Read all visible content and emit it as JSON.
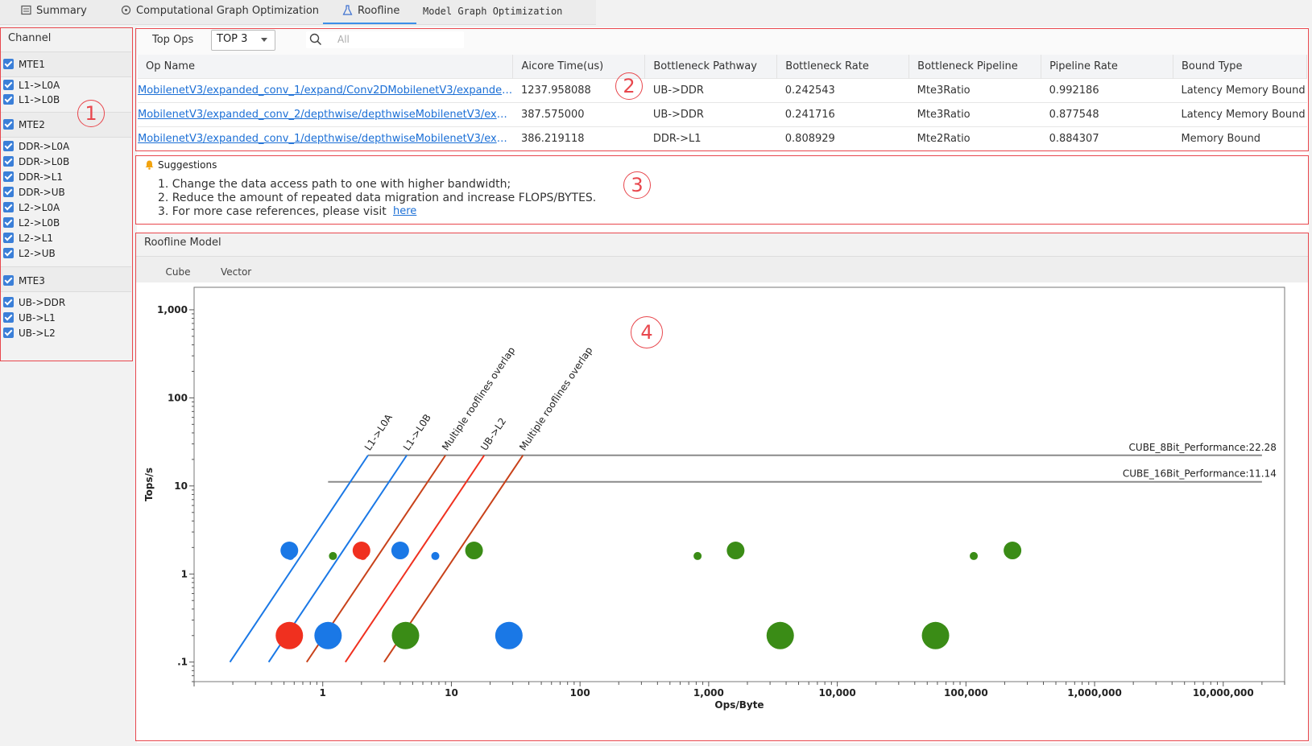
{
  "tabs": [
    {
      "label": "Summary",
      "icon": "summary-icon"
    },
    {
      "label": "Computational Graph Optimization",
      "icon": "graph-icon"
    },
    {
      "label": "Roofline",
      "icon": "flask-icon",
      "active": true
    },
    {
      "label": "Model Graph Optimization"
    }
  ],
  "channel": {
    "title": "Channel",
    "groups": [
      {
        "name": "MTE1",
        "items": [
          "L1->L0A",
          "L1->L0B"
        ]
      },
      {
        "name": "MTE2",
        "items": [
          "DDR->L0A",
          "DDR->L0B",
          "DDR->L1",
          "DDR->UB",
          "L2->L0A",
          "L2->L0B",
          "L2->L1",
          "L2->UB"
        ]
      },
      {
        "name": "MTE3",
        "items": [
          "UB->DDR",
          "UB->L1",
          "UB->L2"
        ]
      }
    ]
  },
  "filter": {
    "top_ops_label": "Top Ops",
    "top_ops_value": "TOP 3",
    "search_placeholder": "All"
  },
  "table": {
    "columns": [
      "Op Name",
      "Aicore Time(us)",
      "Bottleneck Pathway",
      "Bottleneck Rate",
      "Bottleneck Pipeline",
      "Pipeline Rate",
      "Bound Type"
    ],
    "rows": [
      [
        "MobilenetV3/expanded_conv_1/expand/Conv2DMobilenetV3/expanded_c...",
        "1237.958088",
        "UB->DDR",
        "0.242543",
        "Mte3Ratio",
        "0.992186",
        "Latency Memory Bound"
      ],
      [
        "MobilenetV3/expanded_conv_2/depthwise/depthwiseMobilenetV3/expan...",
        "387.575000",
        "UB->DDR",
        "0.241716",
        "Mte3Ratio",
        "0.877548",
        "Latency Memory Bound"
      ],
      [
        "MobilenetV3/expanded_conv_1/depthwise/depthwiseMobilenetV3/expan...",
        "386.219118",
        "DDR->L1",
        "0.808929",
        "Mte2Ratio",
        "0.884307",
        "Memory Bound"
      ]
    ]
  },
  "suggestions": {
    "title": "Suggestions",
    "lines": [
      "1. Change the data access path to one with higher bandwidth;",
      "2. Reduce the amount of repeated data migration and increase FLOPS/BYTES.",
      "3. For more case references, please visit"
    ],
    "link": "here"
  },
  "roofline": {
    "title": "Roofline Model",
    "subtabs": [
      "Cube",
      "Vector"
    ],
    "active_subtab": "Cube"
  },
  "annotations": [
    "1",
    "2",
    "3",
    "4"
  ],
  "colors": {
    "blue": "#1a78e6",
    "red": "#f0301f",
    "green": "#3a8c16",
    "orange": "#c8421a",
    "gray": "#8a8a8a",
    "annot": "#e8474d"
  },
  "chart_data": {
    "type": "scatter",
    "xlabel": "Ops/Byte",
    "ylabel": "Tops/s",
    "x_scale": "log",
    "y_scale": "log",
    "xlim": [
      0.1,
      30000000
    ],
    "ylim": [
      0.06,
      1800
    ],
    "x_ticks": [
      {
        "v": 1,
        "label": "1"
      },
      {
        "v": 10,
        "label": "10"
      },
      {
        "v": 100,
        "label": "100"
      },
      {
        "v": 1000,
        "label": "1,000"
      },
      {
        "v": 10000,
        "label": "10,000"
      },
      {
        "v": 100000,
        "label": "100,000"
      },
      {
        "v": 1000000,
        "label": "1,000,000"
      },
      {
        "v": 10000000,
        "label": "10,000,000"
      }
    ],
    "y_ticks": [
      {
        "v": 0.1,
        "label": ".1"
      },
      {
        "v": 1,
        "label": "1"
      },
      {
        "v": 10,
        "label": "10"
      },
      {
        "v": 100,
        "label": "100"
      },
      {
        "v": 1000,
        "label": "1,000"
      }
    ],
    "rooflines": [
      {
        "label": "L1->L0A",
        "color": "blue",
        "x0": 0.19,
        "ridge": 2.25,
        "peak": 22.28
      },
      {
        "label": "L1->L0B",
        "color": "blue",
        "x0": 0.38,
        "ridge": 4.5,
        "peak": 22.28
      },
      {
        "label": "Multiple rooflines overlap",
        "color": "orange",
        "x0": 0.75,
        "ridge": 9,
        "peak": 22.28
      },
      {
        "label": "UB->L2",
        "color": "red",
        "x0": 1.5,
        "ridge": 18,
        "peak": 22.28
      },
      {
        "label": "Multiple rooflines overlap",
        "color": "orange",
        "x0": 3.0,
        "ridge": 36,
        "peak": 22.28
      }
    ],
    "ceilings": [
      {
        "label": "CUBE_8Bit_Performance:22.28",
        "value": 22.28,
        "x_start": 2.25,
        "x_end": 20000000
      },
      {
        "label": "CUBE_16Bit_Performance:11.14",
        "value": 11.14,
        "x_start": 1.1,
        "x_end": 20000000
      }
    ],
    "points": [
      {
        "x": 0.55,
        "y": 1.85,
        "r": 11,
        "color": "blue"
      },
      {
        "x": 0.56,
        "y": 1.6,
        "r": 5,
        "color": "blue"
      },
      {
        "x": 1.2,
        "y": 1.6,
        "r": 5,
        "color": "green"
      },
      {
        "x": 2.0,
        "y": 1.85,
        "r": 11,
        "color": "red"
      },
      {
        "x": 2.05,
        "y": 1.6,
        "r": 5,
        "color": "red"
      },
      {
        "x": 4.0,
        "y": 1.85,
        "r": 11,
        "color": "blue"
      },
      {
        "x": 7.5,
        "y": 1.6,
        "r": 5,
        "color": "blue"
      },
      {
        "x": 15,
        "y": 1.85,
        "r": 11,
        "color": "green"
      },
      {
        "x": 820,
        "y": 1.6,
        "r": 5,
        "color": "green"
      },
      {
        "x": 1620,
        "y": 1.85,
        "r": 11,
        "color": "green"
      },
      {
        "x": 115000,
        "y": 1.6,
        "r": 5,
        "color": "green"
      },
      {
        "x": 230000,
        "y": 1.85,
        "r": 11,
        "color": "green"
      },
      {
        "x": 0.55,
        "y": 0.2,
        "r": 17,
        "color": "red"
      },
      {
        "x": 1.1,
        "y": 0.2,
        "r": 17,
        "color": "blue"
      },
      {
        "x": 4.4,
        "y": 0.2,
        "r": 17,
        "color": "green"
      },
      {
        "x": 28,
        "y": 0.2,
        "r": 17,
        "color": "blue"
      },
      {
        "x": 3600,
        "y": 0.2,
        "r": 17,
        "color": "green"
      },
      {
        "x": 58000,
        "y": 0.2,
        "r": 17,
        "color": "green"
      }
    ]
  }
}
